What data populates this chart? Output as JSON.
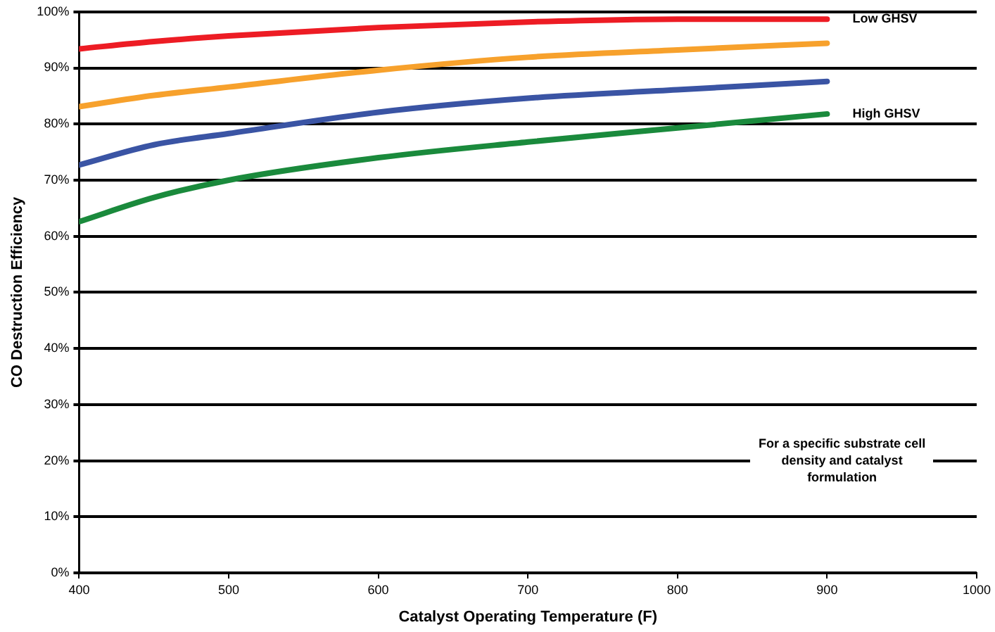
{
  "chart_data": {
    "type": "line",
    "xlabel": "Catalyst Operating Temperature (F)",
    "ylabel": "CO Destruction Efficiency",
    "xlim": [
      400,
      1000
    ],
    "xticks": [
      400,
      500,
      600,
      700,
      800,
      900,
      1000
    ],
    "ylim": [
      0,
      100
    ],
    "yticks": [
      {
        "value": 0,
        "label": "0%"
      },
      {
        "value": 10,
        "label": "10%"
      },
      {
        "value": 20,
        "label": "20%"
      },
      {
        "value": 30,
        "label": "30%"
      },
      {
        "value": 40,
        "label": "40%"
      },
      {
        "value": 50,
        "label": "50%"
      },
      {
        "value": 60,
        "label": "60%"
      },
      {
        "value": 70,
        "label": "70%"
      },
      {
        "value": 80,
        "label": "80%"
      },
      {
        "value": 90,
        "label": "90%"
      },
      {
        "value": 100,
        "label": "100%"
      }
    ],
    "grid": "y",
    "legend": false,
    "marker": "none",
    "line_style": "solid",
    "series": [
      {
        "color": "#ed1c24",
        "x": [
          400,
          450,
          500,
          600,
          700,
          800,
          900
        ],
        "values": [
          93.4,
          94.7,
          95.7,
          97.2,
          98.2,
          98.7,
          98.7
        ]
      },
      {
        "color": "#f7a12c",
        "x": [
          400,
          450,
          500,
          600,
          700,
          800,
          900
        ],
        "values": [
          83.1,
          85.1,
          86.6,
          89.6,
          91.9,
          93.2,
          94.4
        ]
      },
      {
        "color": "#3a54a4",
        "x": [
          400,
          450,
          500,
          600,
          700,
          800,
          900
        ],
        "values": [
          72.7,
          76.3,
          78.3,
          82.1,
          84.6,
          86.1,
          87.6
        ]
      },
      {
        "color": "#1a8a3c",
        "x": [
          400,
          450,
          500,
          600,
          700,
          800,
          900
        ],
        "values": [
          62.6,
          66.9,
          70,
          74,
          76.8,
          79.3,
          81.8
        ]
      }
    ],
    "annotations": [
      {
        "text": "Low GHSV",
        "x": 900,
        "y": 98.7
      },
      {
        "text": "High GHSV",
        "x": 900,
        "y": 81.8
      },
      "For a specific substrate cell density and catalyst formulation"
    ]
  }
}
